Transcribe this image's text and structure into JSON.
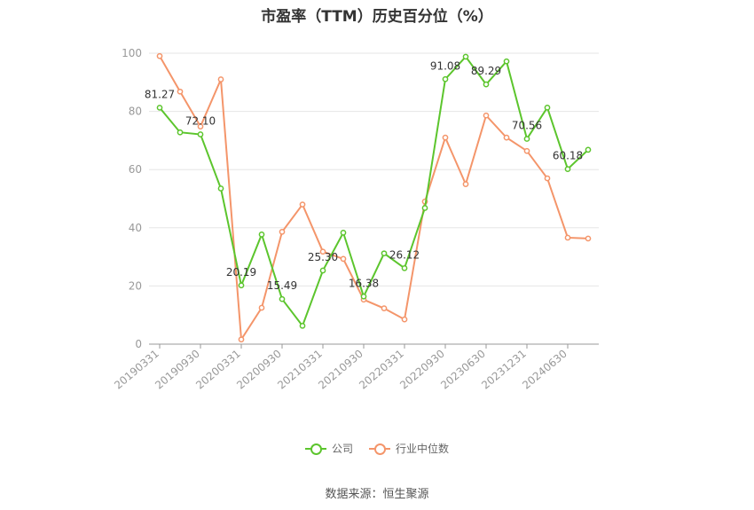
{
  "chart_data": {
    "type": "line",
    "title": "市盈率（TTM）历史百分位（%）",
    "x": [
      "20190331",
      "20190630",
      "20190930",
      "20191231",
      "20200331",
      "20200630",
      "20200930",
      "20201231",
      "20210331",
      "20210630",
      "20210930",
      "20211231",
      "20220331",
      "20220630",
      "20220930",
      "20221231",
      "20230630",
      "20230930",
      "20231231",
      "20240331",
      "20240630",
      "20240930"
    ],
    "x_tick_labels": [
      "20190331",
      "20190930",
      "20200331",
      "20200930",
      "20210331",
      "20210930",
      "20220331",
      "20220930",
      "20230630",
      "20231231",
      "20240630"
    ],
    "ylim": [
      0,
      100
    ],
    "y_ticks": [
      0,
      20,
      40,
      60,
      80,
      100
    ],
    "grid": true,
    "legend_position": "bottom",
    "series": [
      {
        "name": "公司",
        "color": "#5cc52d",
        "values": [
          81.27,
          72.8,
          72.1,
          53.5,
          20.19,
          37.7,
          15.49,
          6.3,
          25.3,
          38.3,
          16.38,
          31.2,
          26.12,
          46.8,
          91.08,
          98.8,
          89.29,
          97.2,
          70.56,
          81.3,
          60.18,
          66.8
        ],
        "labels": [
          "81.27",
          "",
          "72.10",
          "",
          "20.19",
          "",
          "15.49",
          "",
          "25.30",
          "",
          "16.38",
          "",
          "26.12",
          "",
          "91.08",
          "",
          "89.29",
          "",
          "70.56",
          "",
          "60.18",
          ""
        ]
      },
      {
        "name": "行业中位数",
        "color": "#f4956a",
        "values": [
          99.0,
          86.8,
          74.8,
          91.0,
          1.6,
          12.5,
          38.6,
          48.0,
          31.8,
          29.3,
          15.3,
          12.3,
          8.5,
          49.0,
          71.0,
          55.0,
          78.6,
          71.0,
          66.4,
          57.0,
          36.6,
          36.3
        ]
      }
    ],
    "source_note": "数据来源：恒生聚源"
  }
}
